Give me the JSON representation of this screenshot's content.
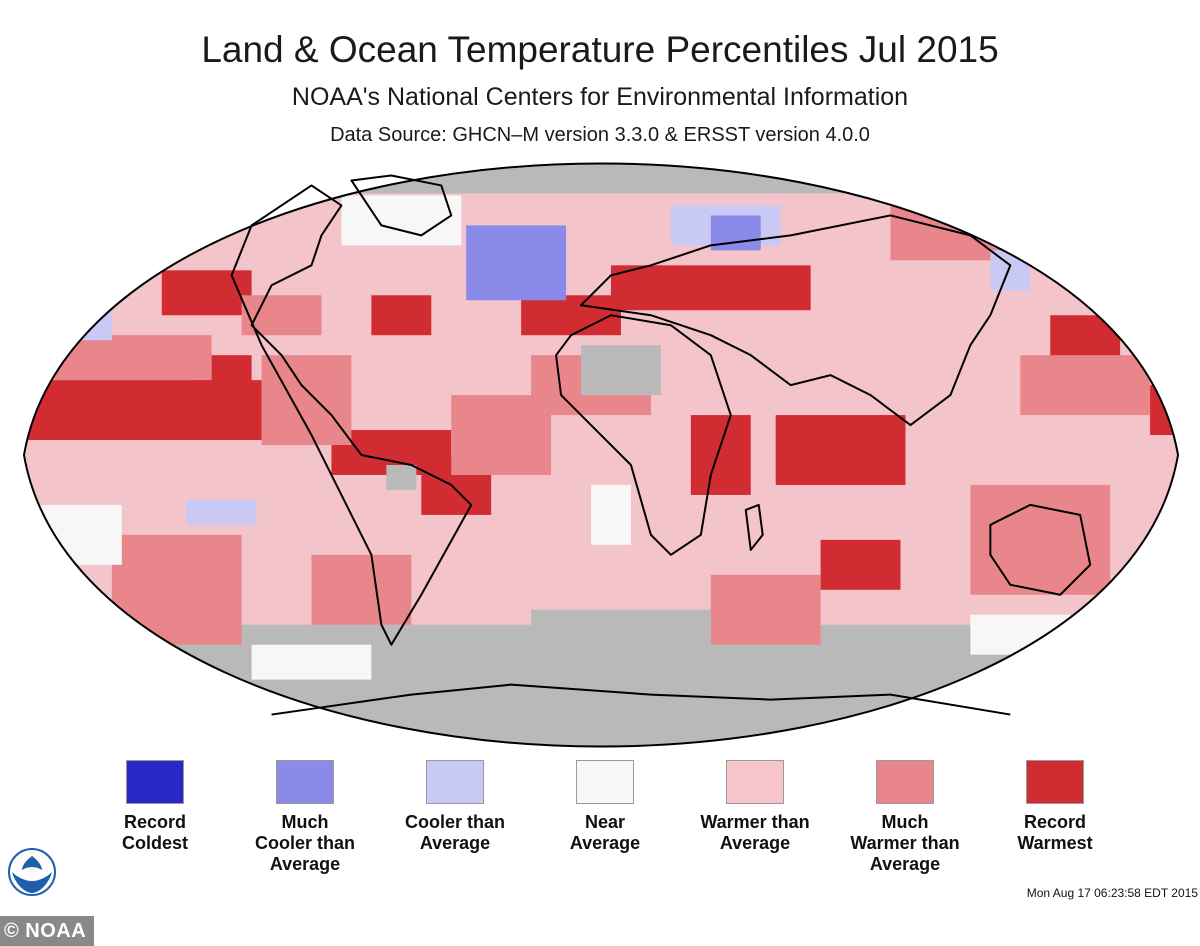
{
  "header": {
    "title": "Land & Ocean Temperature Percentiles Jul 2015",
    "subtitle": "NOAA's National Centers for Environmental Information",
    "source": "Data Source: GHCN–M version 3.3.0 & ERSST version 4.0.0"
  },
  "map": {
    "ocean_background_color": "#f3c4c9",
    "no_data_color": "#b9b9b9",
    "coastline_color": "#000000"
  },
  "legend": [
    {
      "label": "Record\nColdest",
      "color": "#2929c9"
    },
    {
      "label": "Much\nCooler than\nAverage",
      "color": "#8a8ae8"
    },
    {
      "label": "Cooler than\nAverage",
      "color": "#c9c9f6"
    },
    {
      "label": "Near\nAverage",
      "color": "#f7f7f7"
    },
    {
      "label": "Warmer than\nAverage",
      "color": "#f6c6cb"
    },
    {
      "label": "Much\nWarmer than\nAverage",
      "color": "#e8868c"
    },
    {
      "label": "Record\nWarmest",
      "color": "#d12c32"
    }
  ],
  "timestamp": "Mon Aug 17 06:23:58 EDT 2015",
  "credit": "© NOAA",
  "logo_icon": "noaa-logo-icon"
}
